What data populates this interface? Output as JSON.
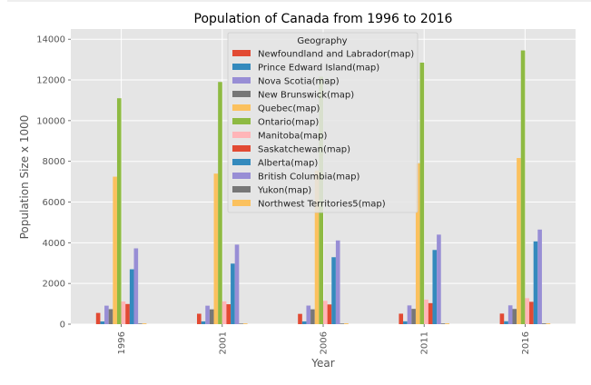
{
  "chart_data": {
    "type": "bar",
    "title": "Population of Canada from 1996 to 2016",
    "xlabel": "Year",
    "ylabel": "Population Size x 1000",
    "ylim": [
      0,
      14500
    ],
    "yticks": [
      0,
      2000,
      4000,
      6000,
      8000,
      10000,
      12000,
      14000
    ],
    "grid": true,
    "legend_title": "Geography",
    "legend_position": "top-center",
    "categories": [
      "1996",
      "2001",
      "2006",
      "2011",
      "2016"
    ],
    "series": [
      {
        "name": "Newfoundland and Labrador(map)",
        "color": "#E24A33",
        "values": [
          552,
          513,
          506,
          515,
          520
        ]
      },
      {
        "name": "Prince Edward Island(map)",
        "color": "#348ABD",
        "values": [
          135,
          136,
          136,
          140,
          143
        ]
      },
      {
        "name": "Nova Scotia(map)",
        "color": "#988ED5",
        "values": [
          909,
          908,
          913,
          921,
          924
        ]
      },
      {
        "name": "New Brunswick(map)",
        "color": "#777777",
        "values": [
          738,
          729,
          730,
          751,
          747
        ]
      },
      {
        "name": "Quebec(map)",
        "color": "#FBC15E",
        "values": [
          7247,
          7397,
          7546,
          7903,
          8164
        ]
      },
      {
        "name": "Ontario(map)",
        "color": "#8EBA42",
        "values": [
          11100,
          11900,
          12160,
          12850,
          13450
        ]
      },
      {
        "name": "Manitoba(map)",
        "color": "#FFB5B8",
        "values": [
          1114,
          1120,
          1148,
          1208,
          1278
        ]
      },
      {
        "name": "Saskatchewan(map)",
        "color": "#E24A33",
        "values": [
          990,
          979,
          968,
          1033,
          1098
        ]
      },
      {
        "name": "Alberta(map)",
        "color": "#348ABD",
        "values": [
          2697,
          2975,
          3290,
          3645,
          4067
        ]
      },
      {
        "name": "British Columbia(map)",
        "color": "#988ED5",
        "values": [
          3725,
          3908,
          4113,
          4400,
          4648
        ]
      },
      {
        "name": "Yukon(map)",
        "color": "#777777",
        "values": [
          31,
          29,
          31,
          34,
          36
        ]
      },
      {
        "name": "Northwest Territories5(map)",
        "color": "#FBC15E",
        "values": [
          40,
          37,
          41,
          41,
          42
        ]
      }
    ]
  }
}
